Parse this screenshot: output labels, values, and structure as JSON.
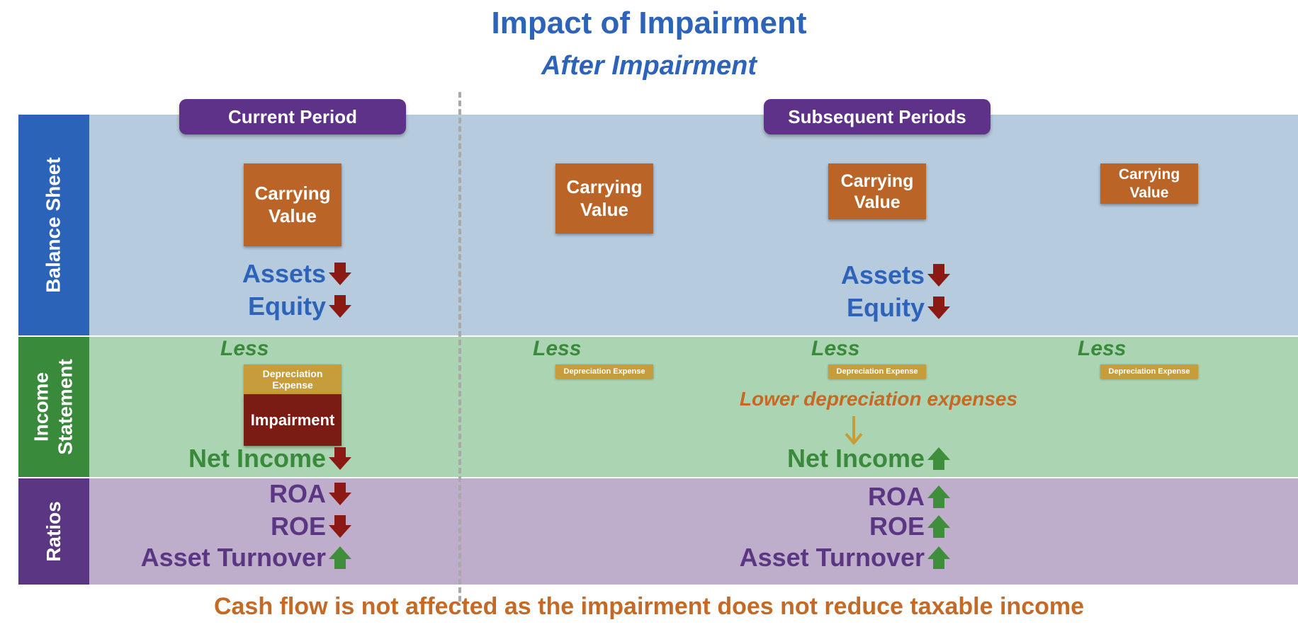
{
  "title": "Impact of Impairment",
  "subtitle": "After Impairment",
  "rows": {
    "balance_sheet": "Balance Sheet",
    "income_statement_line1": "Income",
    "income_statement_line2": "Statement",
    "ratios": "Ratios"
  },
  "periods": {
    "current": "Current Period",
    "subsequent": "Subsequent Periods"
  },
  "carrying_value": "Carrying Value",
  "carrying_value_line1": "Carrying",
  "carrying_value_line2": "Value",
  "less": "Less",
  "depreciation_expense": "Depreciation Expense",
  "depreciation_line1": "Depreciation",
  "depreciation_line2": "Expense",
  "impairment": "Impairment",
  "lower_depreciation_note": "Lower depreciation expenses",
  "current_effects": [
    {
      "label": "Assets",
      "direction": "down"
    },
    {
      "label": "Equity",
      "direction": "down"
    },
    {
      "label": "Net Income",
      "direction": "down"
    },
    {
      "label": "ROA",
      "direction": "down"
    },
    {
      "label": "ROE",
      "direction": "down"
    },
    {
      "label": "Asset Turnover",
      "direction": "up"
    }
  ],
  "subsequent_effects": [
    {
      "label": "Assets",
      "direction": "down"
    },
    {
      "label": "Equity",
      "direction": "down"
    },
    {
      "label": "Net Income",
      "direction": "up"
    },
    {
      "label": "ROA",
      "direction": "up"
    },
    {
      "label": "ROE",
      "direction": "up"
    },
    {
      "label": "Asset Turnover",
      "direction": "up"
    }
  ],
  "footer": "Cash flow is not affected as the impairment does not reduce taxable income",
  "colors": {
    "title_blue": "#2d63b8",
    "balance_band": "#b6cbdd",
    "income_band": "#abd4b2",
    "ratios_band": "#bfadcc",
    "carrying_value": "#bb6427",
    "depreciation": "#c79c3b",
    "impairment": "#7a1c14",
    "arrow_down": "#8b1a14",
    "arrow_up": "#3f8e3c",
    "period_header": "#5e3288",
    "footer_orange": "#c46a26"
  }
}
